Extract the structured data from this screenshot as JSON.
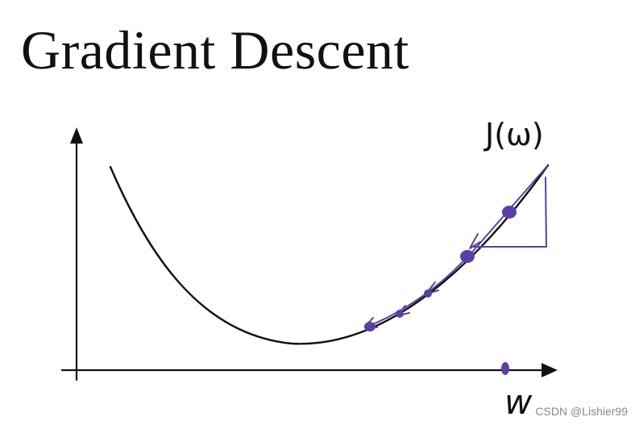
{
  "title": "Gradient Descent",
  "diagram": {
    "y_axis_label": "J(ω)",
    "x_axis_label": "w",
    "colors": {
      "curve": "#111111",
      "axes": "#111111",
      "annotation": "#5b3fa6",
      "text": "#111111"
    }
  },
  "watermark": "CSDN @Lishier99"
}
